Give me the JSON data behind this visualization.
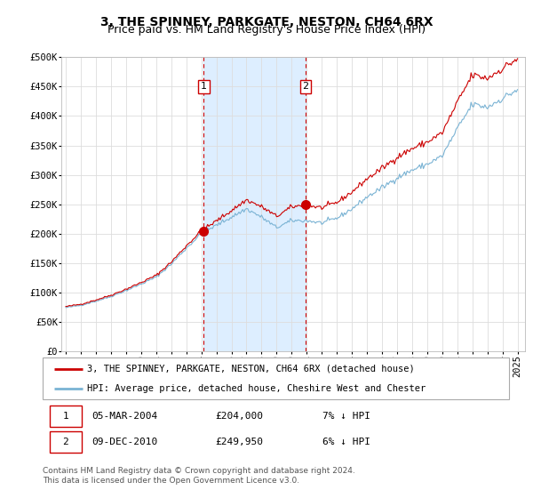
{
  "title": "3, THE SPINNEY, PARKGATE, NESTON, CH64 6RX",
  "subtitle": "Price paid vs. HM Land Registry's House Price Index (HPI)",
  "ylabel_ticks": [
    "£0",
    "£50K",
    "£100K",
    "£150K",
    "£200K",
    "£250K",
    "£300K",
    "£350K",
    "£400K",
    "£450K",
    "£500K"
  ],
  "ytick_values": [
    0,
    50000,
    100000,
    150000,
    200000,
    250000,
    300000,
    350000,
    400000,
    450000,
    500000
  ],
  "xlim_start": 1994.7,
  "xlim_end": 2025.5,
  "ylim": [
    0,
    500000
  ],
  "background_color": "#ffffff",
  "plot_bg_color": "#ffffff",
  "grid_color": "#dddddd",
  "sale1_date": 2004.17,
  "sale1_price": 204000,
  "sale2_date": 2010.92,
  "sale2_price": 249950,
  "sale_color": "#cc0000",
  "hpi_color": "#7ab3d4",
  "shade_color": "#ddeeff",
  "vline_color": "#cc0000",
  "legend_line1": "3, THE SPINNEY, PARKGATE, NESTON, CH64 6RX (detached house)",
  "legend_line2": "HPI: Average price, detached house, Cheshire West and Chester",
  "table_row1": [
    "1",
    "05-MAR-2004",
    "£204,000",
    "7% ↓ HPI"
  ],
  "table_row2": [
    "2",
    "09-DEC-2010",
    "£249,950",
    "6% ↓ HPI"
  ],
  "footnote": "Contains HM Land Registry data © Crown copyright and database right 2024.\nThis data is licensed under the Open Government Licence v3.0.",
  "title_fontsize": 10,
  "subtitle_fontsize": 9,
  "tick_fontsize": 7.5
}
